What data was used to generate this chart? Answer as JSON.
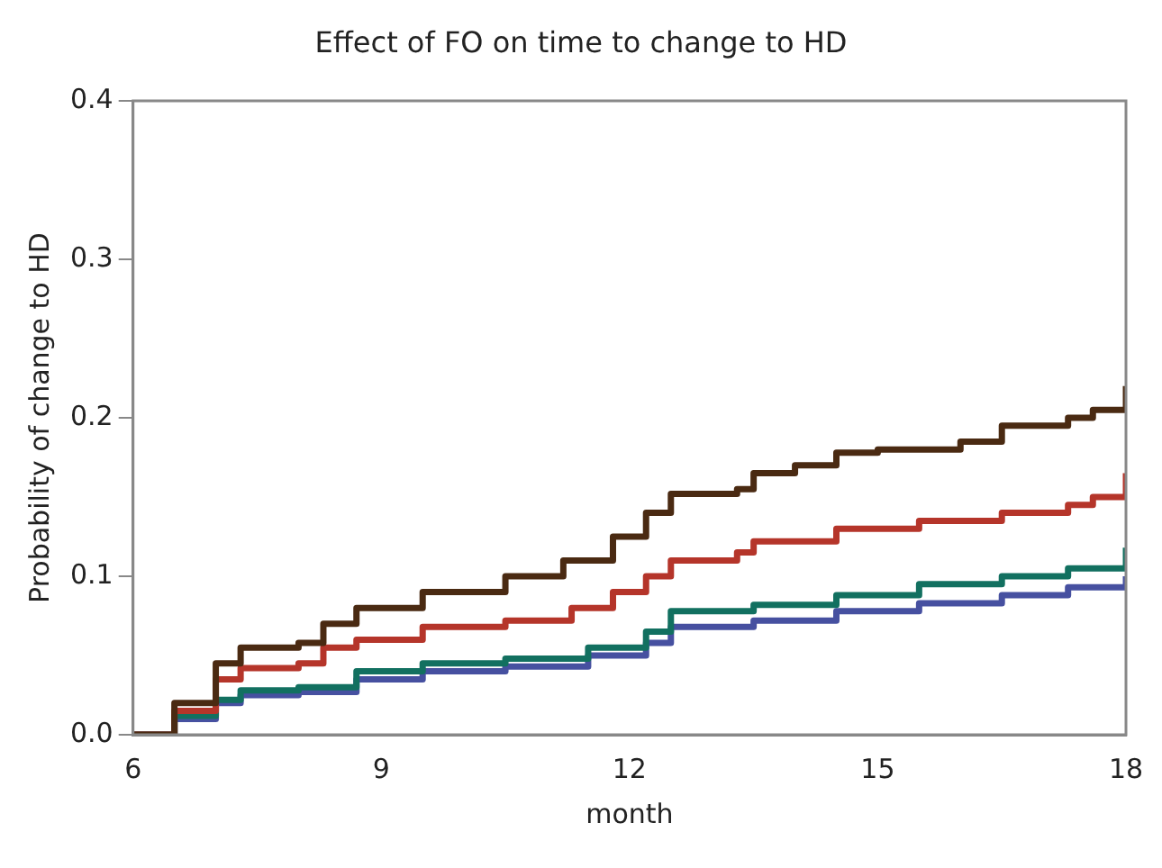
{
  "chart_data": {
    "type": "step",
    "title": "Effect of FO on time to change to HD",
    "xlabel": "month",
    "ylabel": "Probability of change to HD",
    "xlim": [
      6,
      18
    ],
    "xticks": [
      6,
      9,
      12,
      15,
      18
    ],
    "ylim": [
      0,
      0.4
    ],
    "yticks": [
      {
        "value": 0,
        "label": "0.0"
      },
      0.1,
      0.2,
      0.3,
      0.4
    ],
    "grid": false,
    "legend": false,
    "series": [
      {
        "color": "#4a2a12",
        "x": [
          6,
          6.5,
          7,
          7.3,
          8,
          8.3,
          8.7,
          9.5,
          10.5,
          11.2,
          11.8,
          12.2,
          12.5,
          13.3,
          13.5,
          14,
          14.5,
          15,
          16,
          16.5,
          17.3,
          17.6,
          18
        ],
        "values": [
          0,
          0.02,
          0.045,
          0.055,
          0.058,
          0.07,
          0.08,
          0.09,
          0.1,
          0.11,
          0.125,
          0.14,
          0.152,
          0.155,
          0.165,
          0.17,
          0.178,
          0.18,
          0.185,
          0.195,
          0.2,
          0.205,
          0.22
        ]
      },
      {
        "color": "#b5352a",
        "x": [
          6,
          6.5,
          7,
          7.3,
          8,
          8.3,
          8.7,
          9.5,
          10.5,
          11.3,
          11.8,
          12.2,
          12.5,
          13.3,
          13.5,
          14.5,
          15.5,
          16.5,
          17.3,
          17.6,
          18
        ],
        "values": [
          0,
          0.015,
          0.035,
          0.042,
          0.045,
          0.055,
          0.06,
          0.068,
          0.072,
          0.08,
          0.09,
          0.1,
          0.11,
          0.115,
          0.122,
          0.13,
          0.135,
          0.14,
          0.145,
          0.15,
          0.165
        ]
      },
      {
        "color": "#127060",
        "x": [
          6,
          6.5,
          7,
          7.3,
          8,
          8.7,
          9.5,
          10.5,
          11.5,
          12.2,
          12.5,
          13.5,
          14.5,
          15.5,
          16.5,
          17.3,
          18
        ],
        "values": [
          0,
          0.012,
          0.022,
          0.028,
          0.03,
          0.04,
          0.045,
          0.048,
          0.055,
          0.065,
          0.078,
          0.082,
          0.088,
          0.095,
          0.1,
          0.105,
          0.118
        ]
      },
      {
        "color": "#4650a0",
        "x": [
          6,
          6.5,
          7,
          7.3,
          8,
          8.7,
          9.5,
          10.5,
          11.5,
          12.2,
          12.5,
          13.5,
          14.5,
          15.5,
          16.5,
          17.3,
          18
        ],
        "values": [
          0,
          0.01,
          0.02,
          0.025,
          0.027,
          0.035,
          0.04,
          0.043,
          0.05,
          0.058,
          0.068,
          0.072,
          0.078,
          0.083,
          0.088,
          0.093,
          0.1
        ]
      }
    ]
  }
}
